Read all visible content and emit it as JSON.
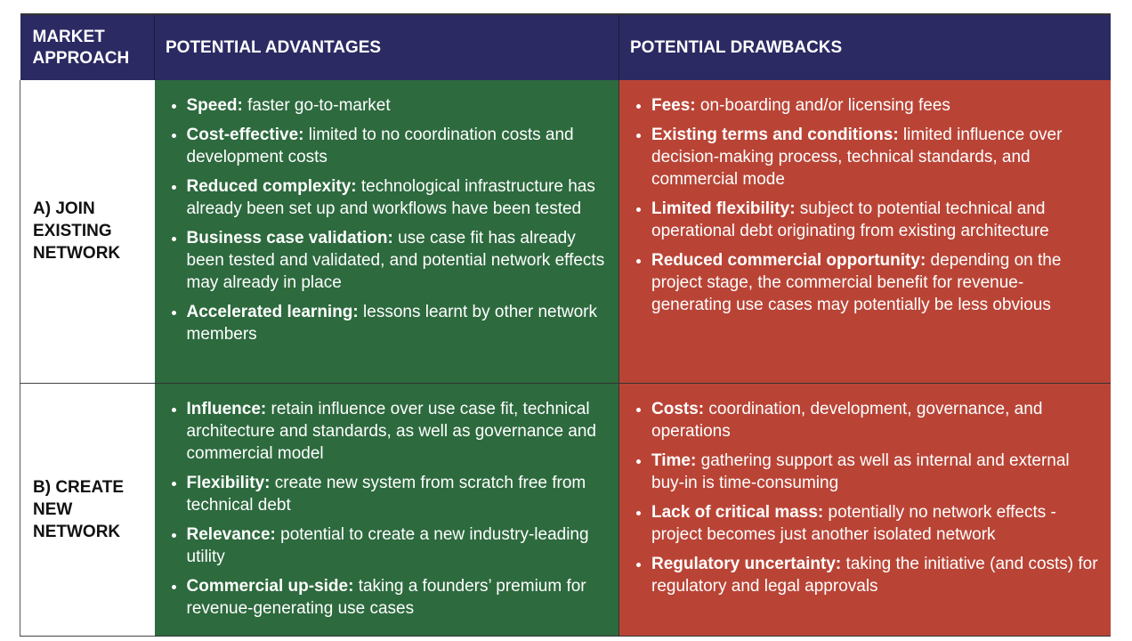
{
  "header": {
    "approach": "MARKET APPROACH",
    "advantages": "POTENTIAL ADVANTAGES",
    "drawbacks": "POTENTIAL DRAWBACKS"
  },
  "colors": {
    "header": "#2b2a63",
    "advantages": "#2d6a3e",
    "drawbacks": "#b94436"
  },
  "rows": [
    {
      "approach": "A) JOIN EXISTING NETWORK",
      "advantages": [
        {
          "term": "Speed:",
          "text": " faster go-to-market"
        },
        {
          "term": "Cost-effective:",
          "text": " limited to no coordination costs and development costs"
        },
        {
          "term": "Reduced complexity:",
          "text": " technological infrastructure has already been set up and workflows have been tested"
        },
        {
          "term": "Business case validation:",
          "text": " use case fit has already been tested and validated, and potential network effects may already in place"
        },
        {
          "term": "Accelerated learning:",
          "text": " lessons learnt by other network members"
        }
      ],
      "drawbacks": [
        {
          "term": "Fees:",
          "text": " on-boarding and/or licensing fees"
        },
        {
          "term": "Existing terms and conditions:",
          "text": " limited influence over decision-making process, technical standards, and commercial mode"
        },
        {
          "term": "Limited flexibility:",
          "text": " subject to potential technical and operational debt originating from existing architecture"
        },
        {
          "term": "Reduced commercial opportunity:",
          "text": " depending on the project stage, the commercial benefit for revenue-generating use cases may potentially be less obvious"
        }
      ]
    },
    {
      "approach": "B) CREATE NEW NETWORK",
      "advantages": [
        {
          "term": "Influence:",
          "text": " retain influence over use case fit, technical architecture and standards, as well as governance and commercial model"
        },
        {
          "term": "Flexibility:",
          "text": " create new system from scratch free from technical debt"
        },
        {
          "term": "Relevance:",
          "text": " potential to create a new industry-leading utility"
        },
        {
          "term": "Commercial up-side:",
          "text": " taking a founders’ premium for revenue-generating use cases"
        }
      ],
      "drawbacks": [
        {
          "term": "Costs:",
          "text": " coordination, development, governance, and operations"
        },
        {
          "term": "Time:",
          "text": " gathering support as well as internal and external buy-in is time-consuming"
        },
        {
          "term": "Lack of critical mass:",
          "text": " potentially no network effects - project becomes just another isolated network"
        },
        {
          "term": "Regulatory uncertainty:",
          "text": " taking the initiative (and costs) for regulatory and legal approvals"
        }
      ]
    }
  ]
}
